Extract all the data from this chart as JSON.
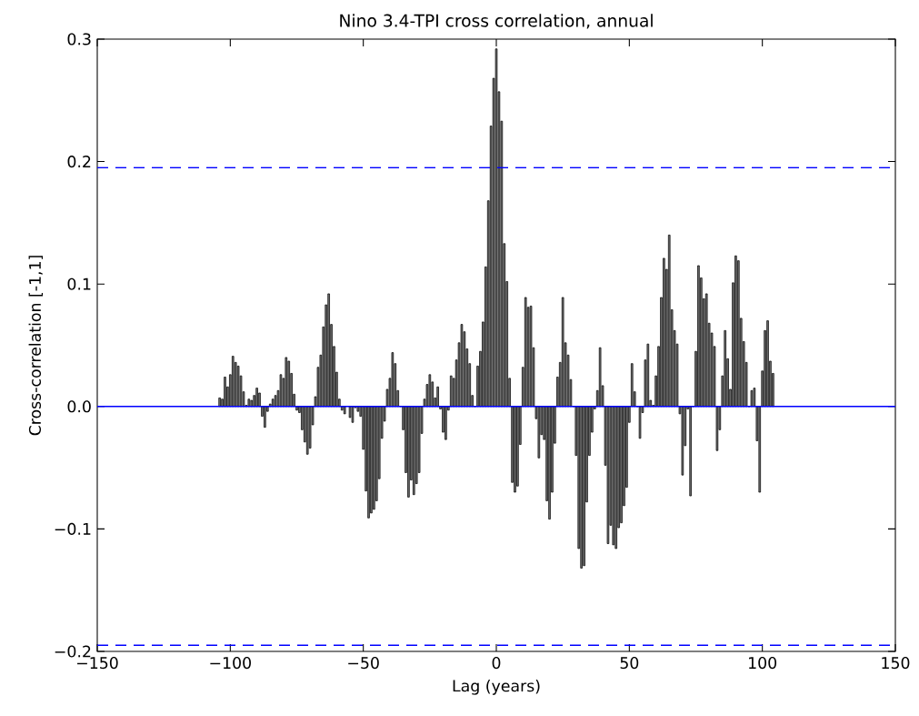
{
  "chart_data": {
    "type": "bar",
    "title": "Nino 3.4-TPI cross correlation, annual",
    "xlabel": "Lag (years)",
    "ylabel": "Cross-correlation [-1,1]",
    "color": "#000000",
    "x": [
      -104,
      -103,
      -102,
      -101,
      -100,
      -99,
      -98,
      -97,
      -96,
      -95,
      -94,
      -93,
      -92,
      -91,
      -90,
      -89,
      -88,
      -87,
      -86,
      -85,
      -84,
      -83,
      -82,
      -81,
      -80,
      -79,
      -78,
      -77,
      -76,
      -75,
      -74,
      -73,
      -72,
      -71,
      -70,
      -69,
      -68,
      -67,
      -66,
      -65,
      -64,
      -63,
      -62,
      -61,
      -60,
      -59,
      -58,
      -57,
      -56,
      -55,
      -54,
      -53,
      -52,
      -51,
      -50,
      -49,
      -48,
      -47,
      -46,
      -45,
      -44,
      -43,
      -42,
      -41,
      -40,
      -39,
      -38,
      -37,
      -36,
      -35,
      -34,
      -33,
      -32,
      -31,
      -30,
      -29,
      -28,
      -27,
      -26,
      -25,
      -24,
      -23,
      -22,
      -21,
      -20,
      -19,
      -18,
      -17,
      -16,
      -15,
      -14,
      -13,
      -12,
      -11,
      -10,
      -9,
      -8,
      -7,
      -6,
      -5,
      -4,
      -3,
      -2,
      -1,
      0,
      1,
      2,
      3,
      4,
      5,
      6,
      7,
      8,
      9,
      10,
      11,
      12,
      13,
      14,
      15,
      16,
      17,
      18,
      19,
      20,
      21,
      22,
      23,
      24,
      25,
      26,
      27,
      28,
      29,
      30,
      31,
      32,
      33,
      34,
      35,
      36,
      37,
      38,
      39,
      40,
      41,
      42,
      43,
      44,
      45,
      46,
      47,
      48,
      49,
      50,
      51,
      52,
      53,
      54,
      55,
      56,
      57,
      58,
      59,
      60,
      61,
      62,
      63,
      64,
      65,
      66,
      67,
      68,
      69,
      70,
      71,
      72,
      73,
      74,
      75,
      76,
      77,
      78,
      79,
      80,
      81,
      82,
      83,
      84,
      85,
      86,
      87,
      88,
      89,
      90,
      91,
      92,
      93,
      94,
      95,
      96,
      97,
      98,
      99,
      100,
      101,
      102,
      103,
      104
    ],
    "values": [
      0.007,
      0.006,
      0.024,
      0.016,
      0.026,
      0.041,
      0.036,
      0.033,
      0.025,
      0.012,
      0.001,
      0.006,
      0.005,
      0.009,
      0.015,
      0.011,
      -0.008,
      -0.017,
      -0.004,
      0.002,
      0.006,
      0.009,
      0.013,
      0.026,
      0.023,
      0.04,
      0.037,
      0.027,
      0.01,
      -0.003,
      -0.005,
      -0.019,
      -0.029,
      -0.039,
      -0.034,
      -0.015,
      0.008,
      0.032,
      0.042,
      0.065,
      0.083,
      0.092,
      0.067,
      0.049,
      0.028,
      0.006,
      -0.003,
      -0.006,
      null,
      -0.009,
      -0.013,
      -0.001,
      -0.004,
      -0.008,
      -0.035,
      -0.069,
      -0.091,
      -0.087,
      -0.084,
      -0.077,
      -0.059,
      -0.026,
      -0.012,
      0.014,
      0.023,
      0.044,
      0.035,
      0.013,
      0.0,
      -0.019,
      -0.054,
      -0.074,
      -0.06,
      -0.072,
      -0.063,
      -0.054,
      -0.022,
      0.006,
      0.018,
      0.026,
      0.02,
      0.007,
      0.016,
      -0.002,
      -0.021,
      -0.027,
      -0.003,
      0.025,
      0.023,
      0.038,
      0.052,
      0.067,
      0.061,
      0.047,
      0.035,
      0.009,
      0.0,
      0.033,
      0.045,
      0.069,
      0.114,
      0.168,
      0.229,
      0.268,
      0.292,
      0.257,
      0.233,
      0.133,
      0.102,
      0.023,
      -0.062,
      -0.07,
      -0.065,
      -0.031,
      0.032,
      0.089,
      0.081,
      0.082,
      0.048,
      -0.01,
      -0.042,
      -0.023,
      -0.027,
      -0.077,
      -0.092,
      -0.07,
      -0.03,
      0.024,
      0.036,
      0.089,
      0.052,
      0.042,
      0.022,
      0.0,
      -0.04,
      -0.116,
      -0.132,
      -0.13,
      -0.078,
      -0.04,
      -0.021,
      -0.002,
      0.013,
      0.048,
      0.017,
      -0.048,
      -0.112,
      -0.097,
      -0.113,
      -0.116,
      -0.099,
      -0.095,
      -0.081,
      -0.066,
      -0.013,
      0.035,
      0.012,
      0.0,
      -0.026,
      -0.005,
      0.038,
      0.051,
      0.005,
      0.001,
      0.025,
      0.049,
      0.089,
      0.121,
      0.112,
      0.14,
      0.079,
      0.062,
      0.051,
      -0.006,
      -0.056,
      -0.032,
      -0.002,
      -0.073,
      0.0,
      0.045,
      0.115,
      0.105,
      0.088,
      0.092,
      0.068,
      0.06,
      0.049,
      -0.036,
      -0.019,
      0.025,
      0.062,
      0.039,
      0.014,
      0.101,
      0.123,
      0.119,
      0.072,
      0.053,
      0.036,
      0.0,
      0.013,
      0.015,
      -0.028,
      -0.07,
      0.029,
      0.062,
      0.07,
      0.037,
      0.027
    ],
    "ref_lines": [
      {
        "axis": "y",
        "value": 0,
        "color": "#0000ff",
        "line_style": "solid"
      },
      {
        "axis": "y",
        "value": 0.195,
        "color": "#0000ff",
        "line_style": "dashed"
      },
      {
        "axis": "y",
        "value": -0.195,
        "color": "#0000ff",
        "line_style": "dashed"
      }
    ],
    "xlim": [
      -150,
      150
    ],
    "ylim": [
      -0.2,
      0.3
    ],
    "xticks": [
      {
        "value": -150,
        "label": "−150"
      },
      {
        "value": -100,
        "label": "−100"
      },
      {
        "value": -50,
        "label": "−50"
      },
      0,
      50,
      100,
      150
    ],
    "yticks": [
      {
        "value": -0.2,
        "label": "−0.2"
      },
      {
        "value": -0.1,
        "label": "−0.1"
      },
      {
        "value": 0,
        "label": "0.0"
      },
      0.1,
      0.2,
      0.3
    ]
  }
}
